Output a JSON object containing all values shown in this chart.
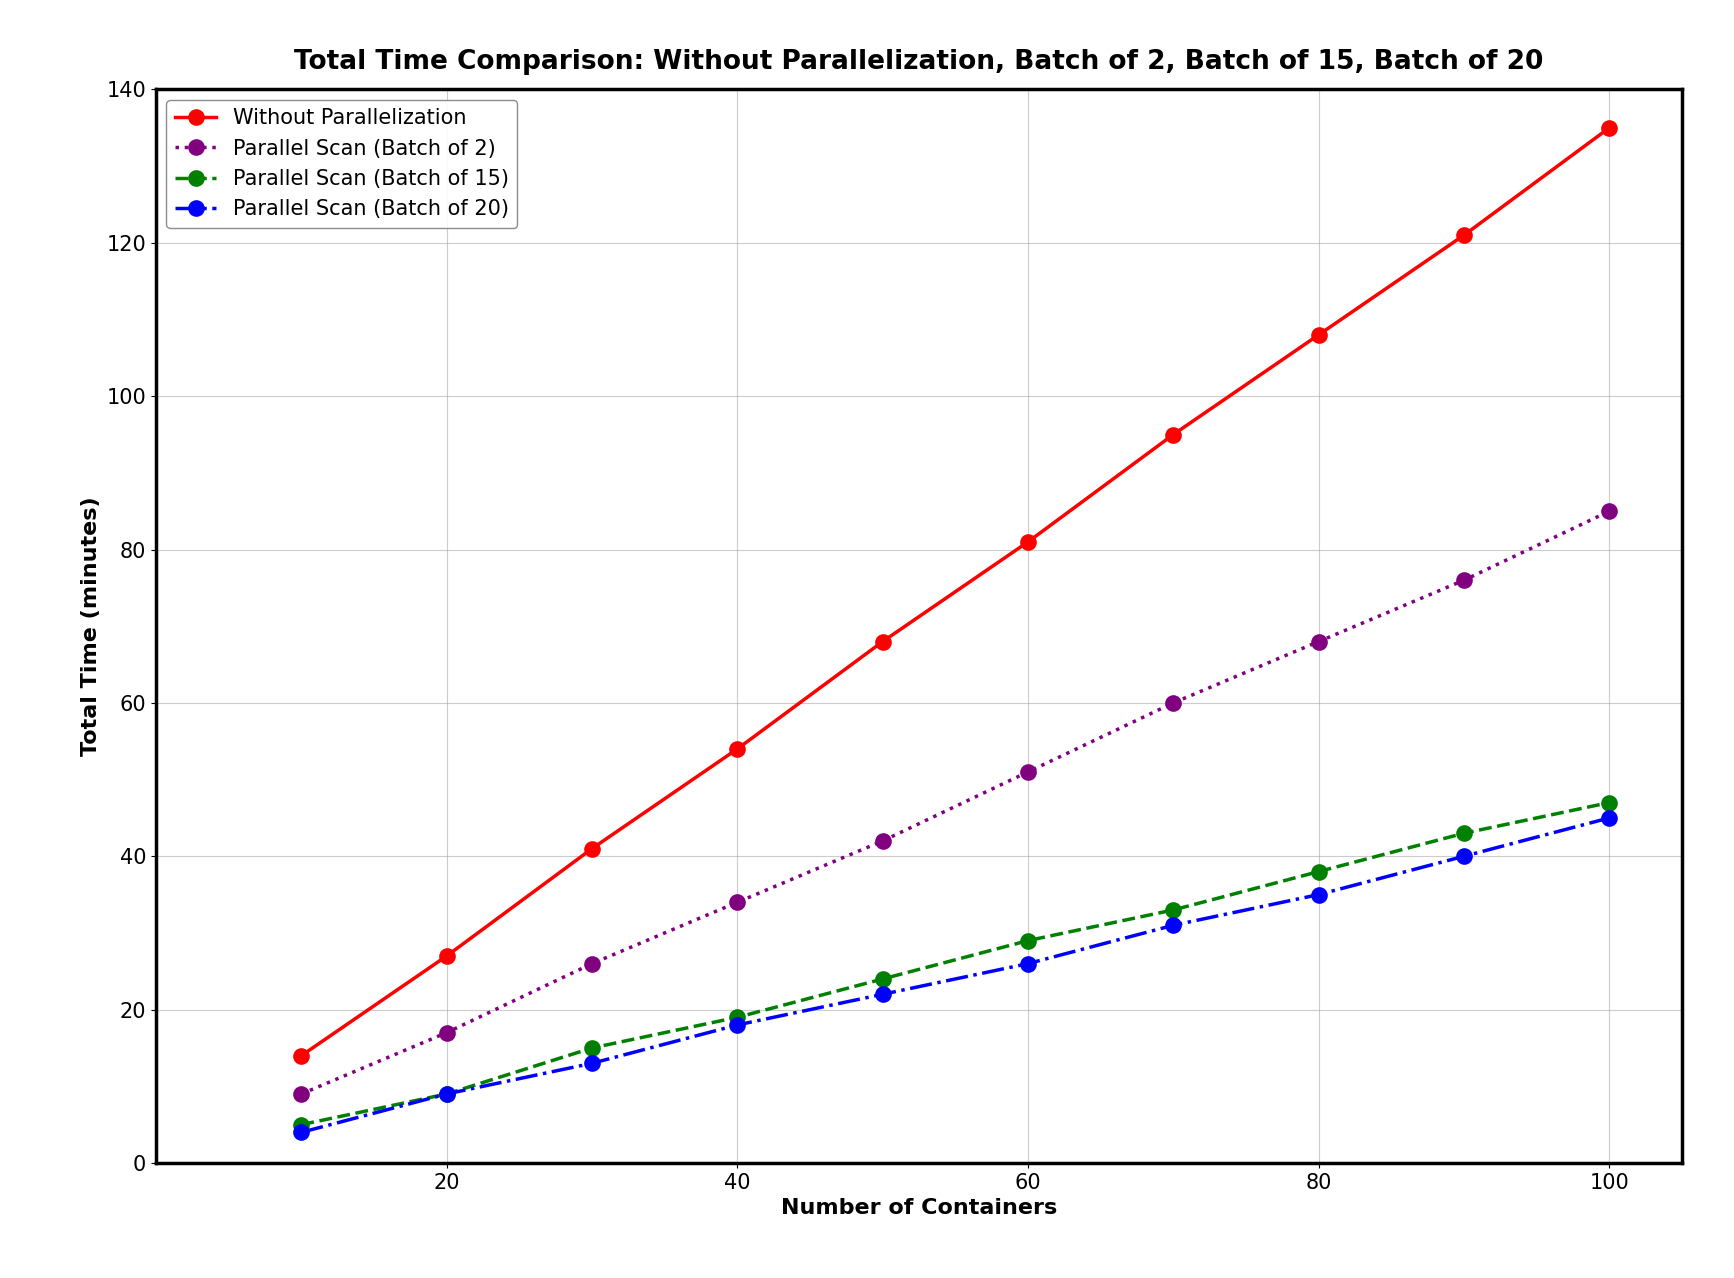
{
  "title": "Total Time Comparison: Without Parallelization, Batch of 2, Batch of 15, Batch of 20",
  "xlabel": "Number of Containers",
  "ylabel": "Total Time (minutes)",
  "xlim": [
    0,
    105
  ],
  "ylim": [
    0,
    140
  ],
  "x": [
    10,
    20,
    30,
    40,
    50,
    60,
    70,
    80,
    90,
    100
  ],
  "series": [
    {
      "label": "Without Parallelization",
      "y": [
        14,
        27,
        41,
        54,
        68,
        81,
        95,
        108,
        121,
        135
      ],
      "color": "red",
      "linestyle": "-",
      "marker": "o",
      "linewidth": 2.5,
      "markersize": 12
    },
    {
      "label": "Parallel Scan (Batch of 2)",
      "y": [
        9,
        17,
        26,
        34,
        42,
        51,
        60,
        68,
        76,
        85
      ],
      "color": "purple",
      "linestyle": ":",
      "marker": "o",
      "linewidth": 2.5,
      "markersize": 12
    },
    {
      "label": "Parallel Scan (Batch of 15)",
      "y": [
        5,
        9,
        15,
        19,
        24,
        29,
        33,
        38,
        43,
        47
      ],
      "color": "green",
      "linestyle": "--",
      "marker": "o",
      "linewidth": 2.5,
      "markersize": 12
    },
    {
      "label": "Parallel Scan (Batch of 20)",
      "y": [
        4,
        9,
        13,
        18,
        22,
        26,
        31,
        35,
        40,
        45
      ],
      "color": "blue",
      "linestyle": "-.",
      "marker": "o",
      "linewidth": 2.5,
      "markersize": 12
    }
  ],
  "title_fontsize": 19,
  "title_fontweight": "bold",
  "label_fontsize": 16,
  "tick_fontsize": 15,
  "legend_fontsize": 15,
  "grid": true,
  "grid_color": "#aaaaaa",
  "grid_alpha": 0.6,
  "background_color": "white",
  "xticks": [
    20,
    40,
    60,
    80,
    100
  ],
  "yticks": [
    0,
    20,
    40,
    60,
    80,
    100,
    120,
    140
  ],
  "spine_linewidth": 2.5
}
